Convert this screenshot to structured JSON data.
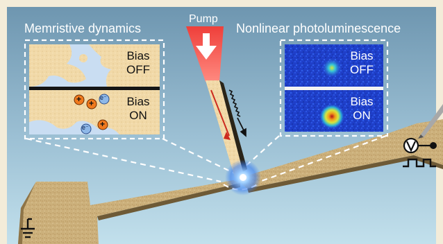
{
  "headings": {
    "left": "Memristive dynamics",
    "pump": "Pump",
    "right": "Nonlinear photoluminescence"
  },
  "left_panel": {
    "top": {
      "line1": "Bias",
      "line2": "OFF"
    },
    "bottom": {
      "line1": "Bias",
      "line2": "ON"
    },
    "charges": {
      "plus": "+",
      "electron": "e⁻"
    }
  },
  "right_panel": {
    "top": {
      "line1": "Bias",
      "line2": "OFF"
    },
    "bottom": {
      "line1": "Bias",
      "line2": "ON"
    }
  },
  "icons": [
    "voltmeter-icon",
    "pulse-train-icon",
    "ground-icon",
    "pump-arrow-icon",
    "emission-squiggle-icon"
  ],
  "colors": {
    "background_top": "#7ea3bb",
    "background_bottom": "#b5d7e6",
    "frame": "#f3ecd9",
    "electrode": "#cbb07a",
    "pump_beam": "#f2584f",
    "charge_plus": "#f07a1e",
    "charge_electron": "#8eb8e8",
    "pl_map": "#1c3ec8"
  }
}
